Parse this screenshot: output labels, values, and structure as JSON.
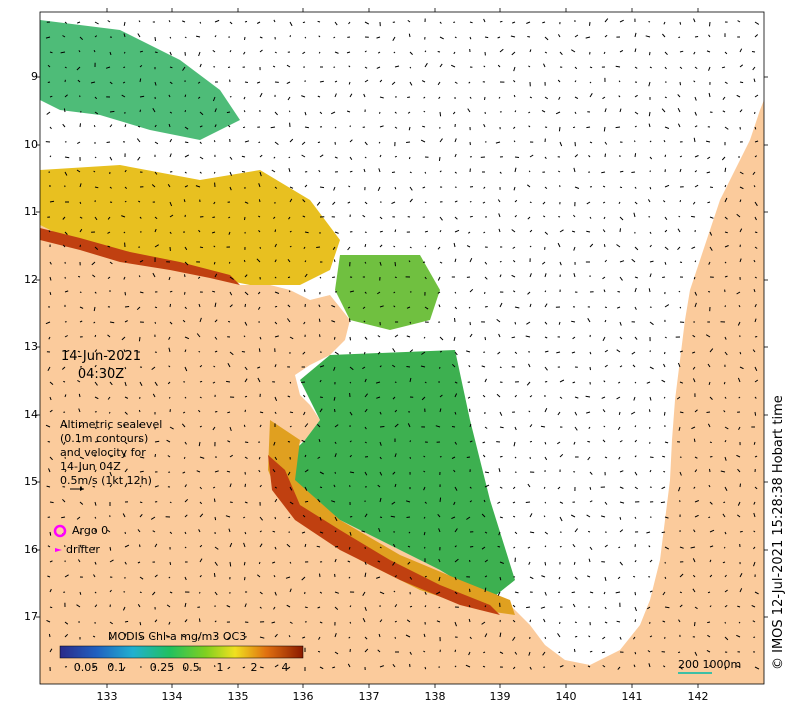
{
  "map": {
    "date_line1": "14-Jun-2021",
    "date_line2": "04:30Z",
    "note_lines": [
      "Altimetric sealevel",
      "(0.1m contours)",
      "and velocity for",
      "14-Jun 04Z",
      "0.5m/s (1kt 12h)"
    ],
    "legend": {
      "argo_label": "Argo 0",
      "drifter_label": "drifter",
      "argo_color": "#ff00ff",
      "drifter_color": "#ff00ff"
    },
    "lat_ticks": [
      "9",
      "10",
      "11",
      "12",
      "13",
      "14",
      "15",
      "16",
      "17"
    ],
    "lon_ticks": [
      "133",
      "134",
      "135",
      "136",
      "137",
      "138",
      "139",
      "140",
      "141",
      "142"
    ],
    "colorbar": {
      "title": "MODIS Chl-a mg/m3 OC3",
      "ticks": [
        "0.05",
        "0.1",
        "0.25",
        "0.5",
        "1",
        "2",
        "4"
      ]
    },
    "scale_label": "200  1000m",
    "credit": "© IMOS 12-Jul-2021 15:28:38 Hobart time",
    "colors": {
      "land": "#fbcb9c",
      "sea": "#ffffff",
      "chl_high": "#8b1a00",
      "chl_low": "#2233aa"
    }
  }
}
